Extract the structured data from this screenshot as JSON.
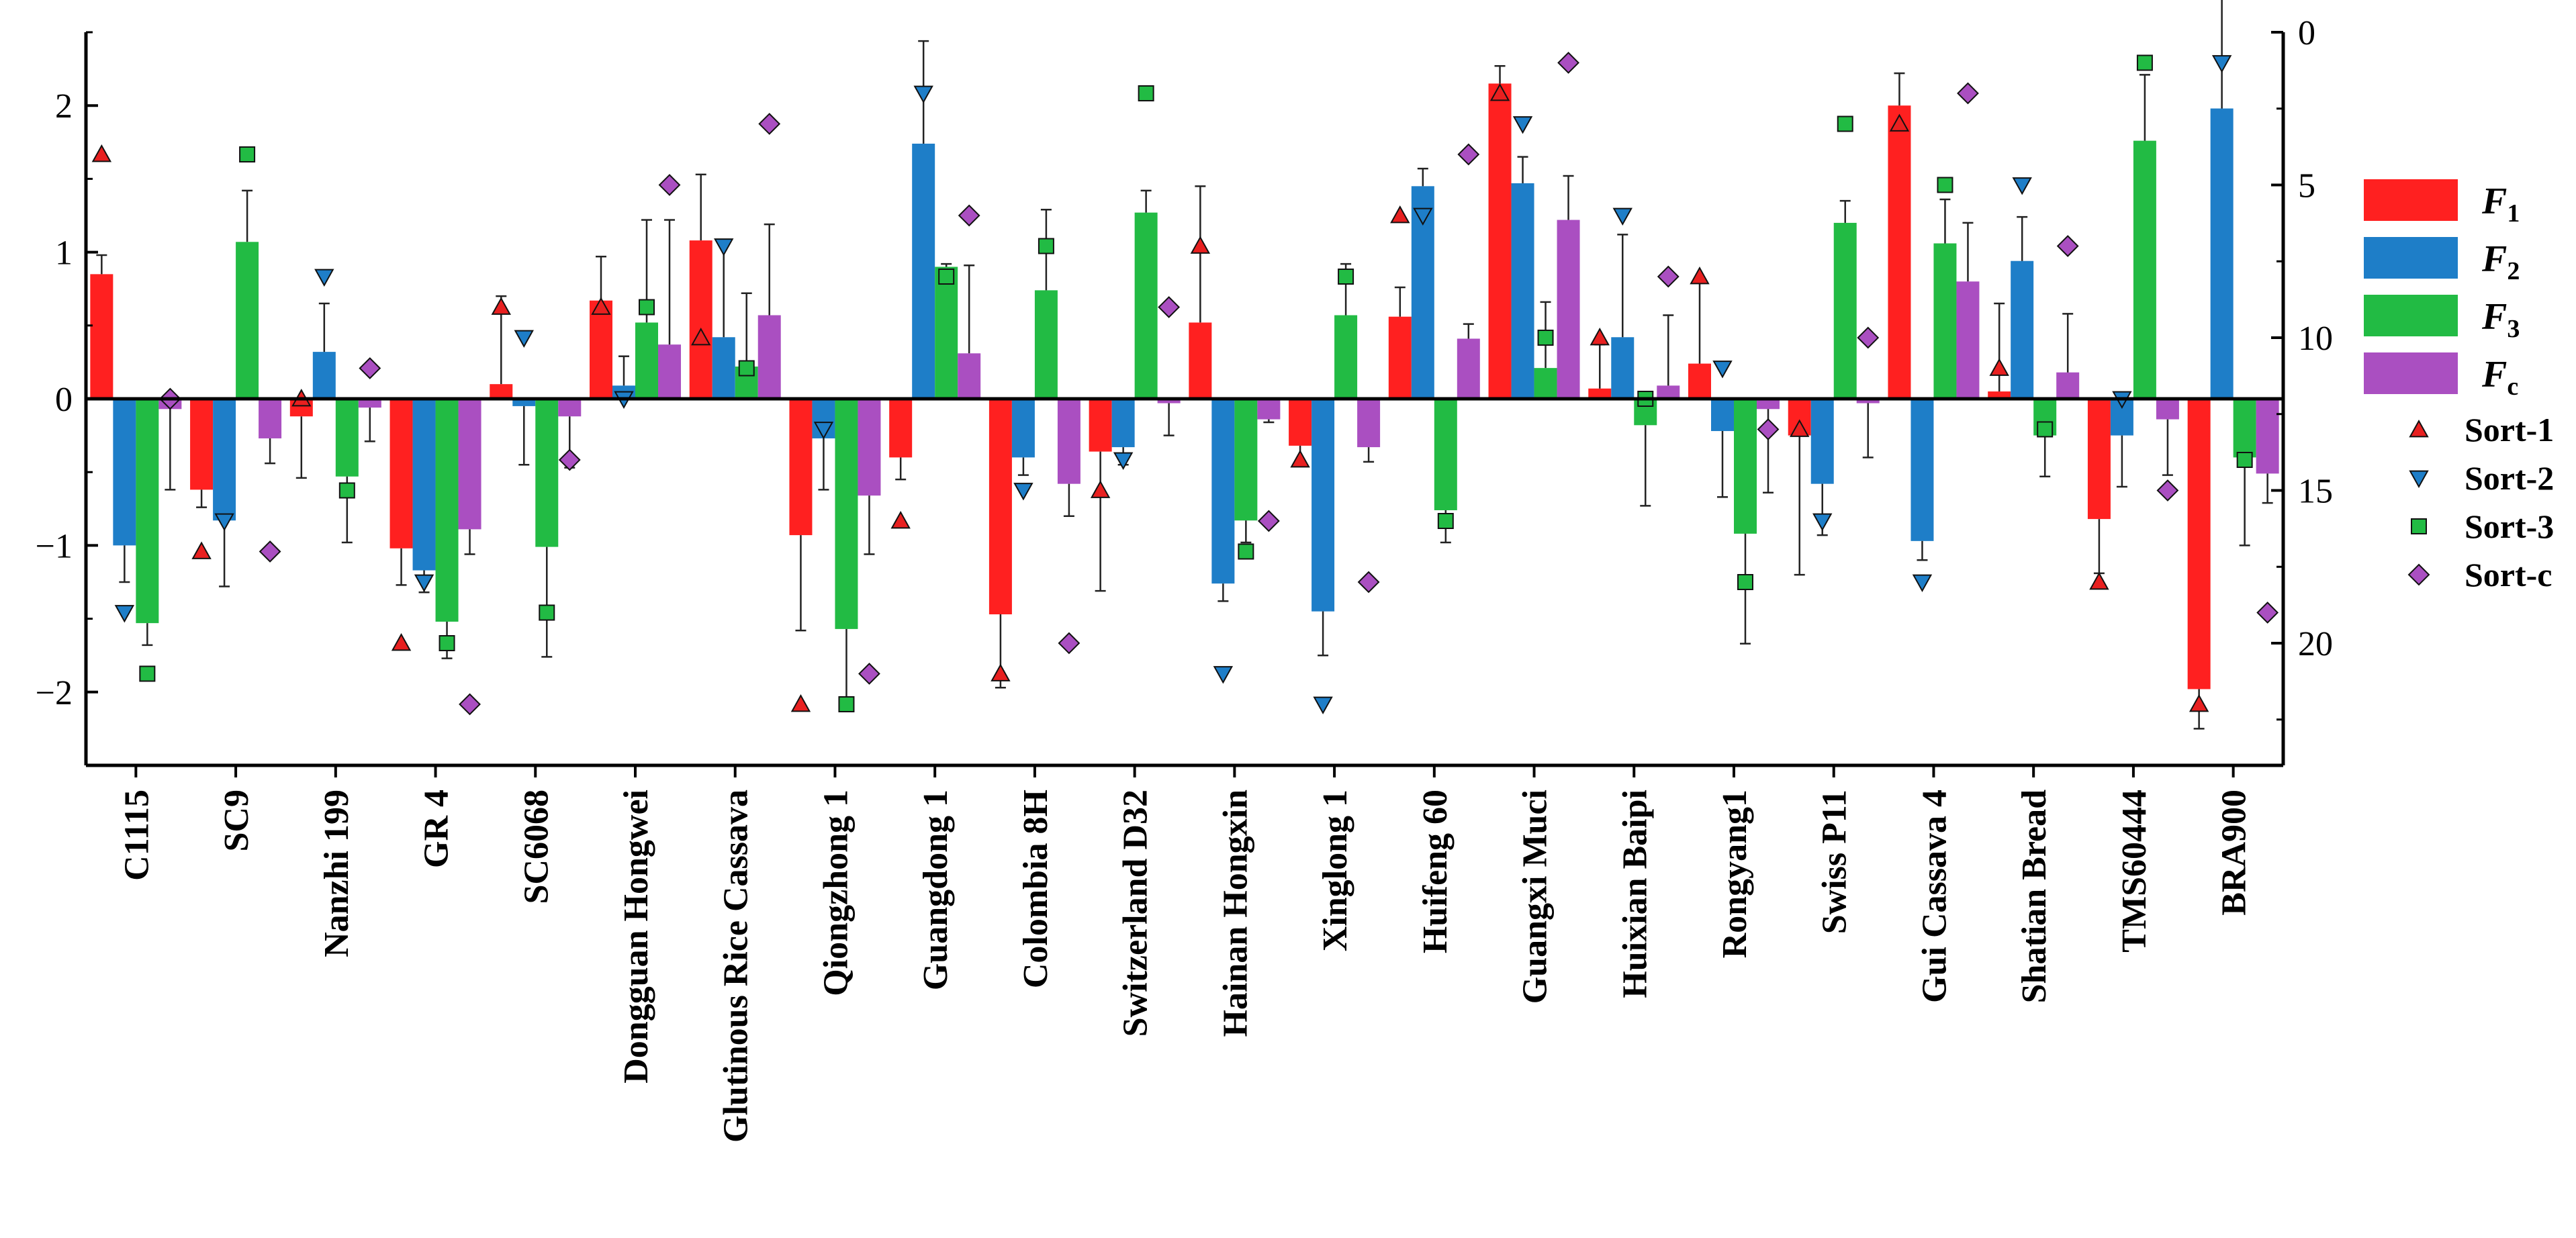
{
  "chart_data": {
    "type": "bar",
    "categories": [
      "C1115",
      "SC9",
      "Nanzhi 199",
      "GR 4",
      "SC6068",
      "Dongguan Hongwei",
      "Glutinous Rice Cassava",
      "Qiongzhong 1",
      "Guangdong 1",
      "Colombia 8H",
      "Switzerland D32",
      "Hainan Hongxin",
      "Xinglong 1",
      "Huifeng 60",
      "Guangxi Muci",
      "Huixian Baipi",
      "Rongyang1",
      "Swiss P11",
      "Gui Cassava 4",
      "Shatian Bread",
      "TMS60444",
      "BRA900"
    ],
    "left_axis": {
      "ylim": [
        -2.5,
        2.5
      ],
      "ticks": [
        -2,
        -1,
        0,
        1,
        2
      ],
      "tick_labels": [
        "−2",
        "−1",
        "0",
        "1",
        "2"
      ]
    },
    "right_axis": {
      "ylim": [
        24,
        0
      ],
      "inverted": true,
      "ticks": [
        0,
        5,
        10,
        15,
        20
      ],
      "tick_labels": [
        "0",
        "5",
        "10",
        "15",
        "20"
      ]
    },
    "series": [
      {
        "name": "F",
        "subscript": "1",
        "color": "#ff2020",
        "values": [
          0.85,
          -0.62,
          -0.12,
          -1.02,
          0.1,
          0.67,
          1.08,
          -0.93,
          -0.4,
          -1.47,
          -0.36,
          0.52,
          -0.32,
          0.56,
          2.15,
          0.07,
          0.24,
          -0.25,
          2.0,
          0.05,
          -0.82,
          -1.98
        ],
        "errors": [
          0.13,
          0.12,
          0.42,
          0.25,
          0.6,
          0.3,
          0.45,
          0.65,
          0.15,
          0.5,
          0.95,
          0.93,
          0.12,
          0.2,
          0.12,
          0.3,
          0.58,
          0.95,
          0.22,
          0.6,
          0.37,
          0.27
        ]
      },
      {
        "name": "F",
        "subscript": "2",
        "color": "#1e7ec8",
        "values": [
          -1.0,
          -0.83,
          0.32,
          -1.17,
          -0.05,
          0.09,
          0.42,
          -0.27,
          1.74,
          -0.4,
          -0.33,
          -1.26,
          -1.45,
          1.45,
          1.47,
          0.42,
          -0.22,
          -0.58,
          -0.97,
          0.94,
          -0.25,
          1.98
        ],
        "errors": [
          0.25,
          0.45,
          0.33,
          0.15,
          0.4,
          0.2,
          0.65,
          0.35,
          0.7,
          0.12,
          0.12,
          0.12,
          0.3,
          0.12,
          0.18,
          0.7,
          0.45,
          0.35,
          0.13,
          0.3,
          0.35,
          0.75
        ]
      },
      {
        "name": "F",
        "subscript": "3",
        "color": "#22bb44",
        "values": [
          -1.53,
          1.07,
          -0.53,
          -1.52,
          -1.01,
          0.52,
          0.22,
          -1.57,
          0.9,
          0.74,
          1.27,
          -0.83,
          0.57,
          -0.76,
          0.21,
          -0.18,
          -0.92,
          1.2,
          1.06,
          -0.25,
          1.76,
          -0.4
        ],
        "errors": [
          0.15,
          0.35,
          0.45,
          0.25,
          0.75,
          0.7,
          0.5,
          0.55,
          0.02,
          0.55,
          0.15,
          0.15,
          0.35,
          0.22,
          0.45,
          0.55,
          0.75,
          0.15,
          0.3,
          0.28,
          0.45,
          0.6
        ]
      },
      {
        "name": "F",
        "subscript": "c",
        "color": "#aa4fc1",
        "values": [
          -0.07,
          -0.27,
          -0.06,
          -0.89,
          -0.12,
          0.37,
          0.57,
          -0.66,
          0.31,
          -0.58,
          -0.03,
          -0.14,
          -0.33,
          0.41,
          1.22,
          0.09,
          -0.07,
          -0.03,
          0.8,
          0.18,
          -0.14,
          -0.51
        ],
        "errors": [
          0.55,
          0.17,
          0.23,
          0.17,
          0.35,
          0.85,
          0.62,
          0.4,
          0.6,
          0.22,
          0.22,
          0.02,
          0.1,
          0.1,
          0.3,
          0.48,
          0.57,
          0.37,
          0.4,
          0.4,
          0.38,
          0.2
        ]
      }
    ],
    "rank_series": [
      {
        "name": "Sort-1",
        "marker": "triangle-up",
        "color": "#e82020",
        "values": [
          4,
          17,
          12,
          20,
          9,
          9,
          10,
          22,
          16,
          21,
          15,
          7,
          14,
          6,
          2,
          10,
          8,
          13,
          3,
          11,
          18,
          22
        ]
      },
      {
        "name": "Sort-2",
        "marker": "triangle-down",
        "color": "#1e7ec8",
        "values": [
          19,
          16,
          8,
          18,
          10,
          12,
          7,
          13,
          2,
          15,
          14,
          21,
          22,
          6,
          3,
          6,
          11,
          16,
          18,
          5,
          12,
          1
        ]
      },
      {
        "name": "Sort-3",
        "marker": "square",
        "color": "#22bb44",
        "values": [
          21,
          4,
          15,
          20,
          19,
          9,
          11,
          22,
          8,
          7,
          2,
          17,
          8,
          16,
          10,
          12,
          18,
          3,
          5,
          13,
          1,
          14
        ]
      },
      {
        "name": "Sort-c",
        "marker": "diamond",
        "color": "#aa4fc1",
        "values": [
          12,
          17,
          11,
          22,
          14,
          5,
          3,
          21,
          6,
          20,
          9,
          16,
          18,
          4,
          1,
          8,
          13,
          10,
          2,
          7,
          15,
          19
        ]
      }
    ],
    "legend": {
      "position": "right"
    },
    "grid": false
  }
}
